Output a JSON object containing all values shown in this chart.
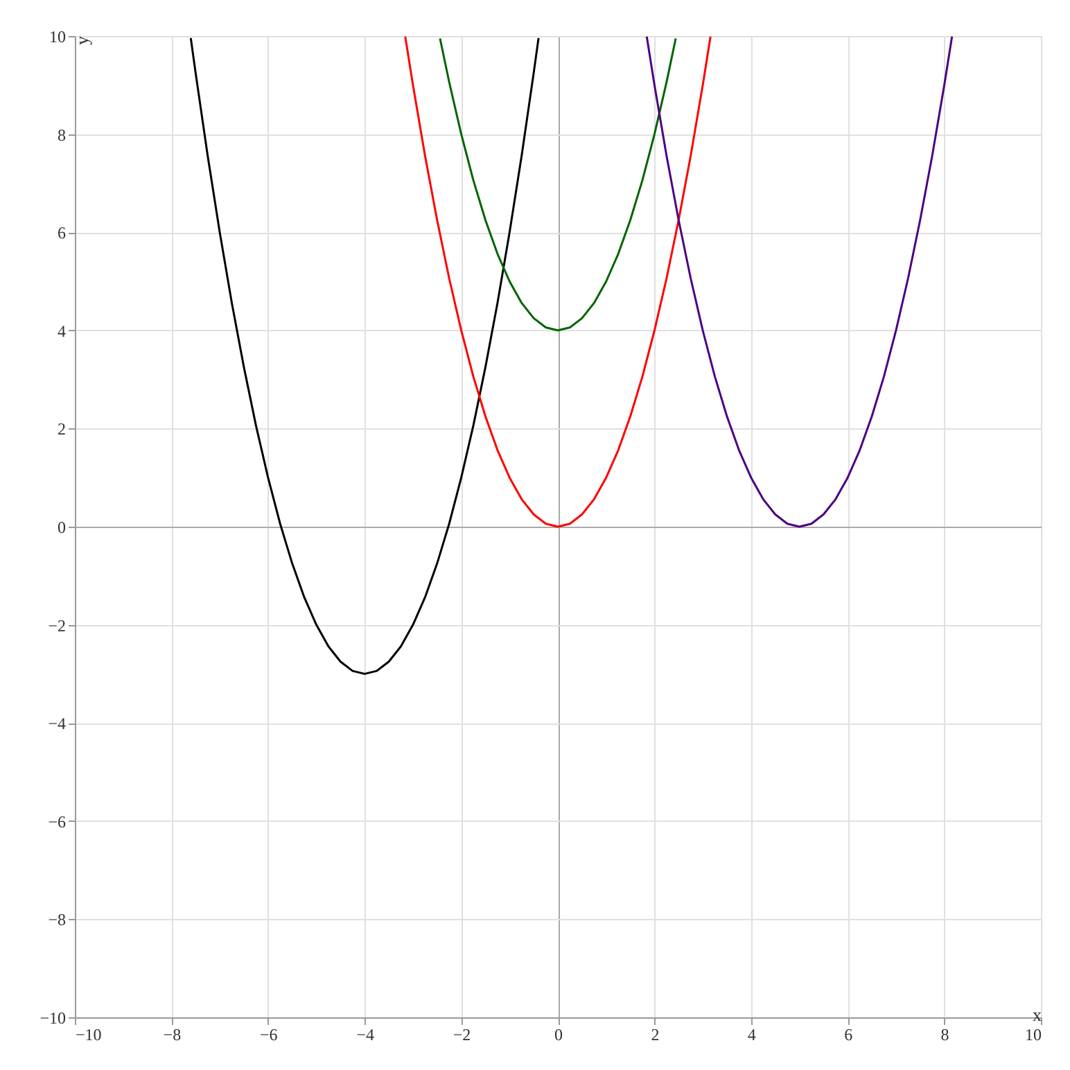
{
  "chart_data": {
    "type": "line",
    "xlabel": "x",
    "ylabel": "y",
    "xlim": [
      -10,
      10
    ],
    "ylim": [
      -10,
      10
    ],
    "xticks": [
      -10,
      -8,
      -6,
      -4,
      -2,
      0,
      2,
      4,
      6,
      8,
      10
    ],
    "yticks": [
      -10,
      -8,
      -6,
      -4,
      -2,
      0,
      2,
      4,
      6,
      8,
      10
    ],
    "grid": true,
    "marker": "none",
    "line_style": "solid",
    "series": [
      {
        "color": "#000000",
        "x": [
          -7.6,
          -7.5,
          -7.25,
          -7,
          -6.75,
          -6.5,
          -6.25,
          -6,
          -5.75,
          -5.5,
          -5.25,
          -5,
          -4.75,
          -4.5,
          -4.25,
          -4,
          -3.75,
          -3.5,
          -3.25,
          -3,
          -2.75,
          -2.5,
          -2.25,
          -2,
          -1.75,
          -1.5,
          -1.25,
          -1,
          -0.75,
          -0.5,
          -0.4
        ],
        "values": [
          9.96,
          9.25,
          7.56,
          6,
          4.56,
          3.25,
          2.06,
          1,
          0.06,
          -0.75,
          -1.44,
          -2,
          -2.44,
          -2.75,
          -2.94,
          -3,
          -2.94,
          -2.75,
          -2.44,
          -2,
          -1.44,
          -0.75,
          0.06,
          1,
          2.06,
          3.25,
          4.56,
          6,
          7.56,
          9.25,
          9.96
        ]
      },
      {
        "color": "#ff0000",
        "x": [
          -3.16,
          -3,
          -2.75,
          -2.5,
          -2.25,
          -2,
          -1.75,
          -1.5,
          -1.25,
          -1,
          -0.75,
          -0.5,
          -0.25,
          0,
          0.25,
          0.5,
          0.75,
          1,
          1.25,
          1.5,
          1.75,
          2,
          2.25,
          2.5,
          2.75,
          3,
          3.16
        ],
        "values": [
          9.99,
          9,
          7.56,
          6.25,
          5.06,
          4,
          3.06,
          2.25,
          1.56,
          1,
          0.56,
          0.25,
          0.06,
          0,
          0.06,
          0.25,
          0.56,
          1,
          1.56,
          2.25,
          3.06,
          4,
          5.06,
          6.25,
          7.56,
          9,
          9.99
        ]
      },
      {
        "color": "#006400",
        "x": [
          -2.44,
          -2.25,
          -2,
          -1.75,
          -1.5,
          -1.25,
          -1,
          -0.75,
          -0.5,
          -0.25,
          0,
          0.25,
          0.5,
          0.75,
          1,
          1.25,
          1.5,
          1.75,
          2,
          2.25,
          2.44
        ],
        "values": [
          9.95,
          9.06,
          8,
          7.06,
          6.25,
          5.56,
          5,
          4.56,
          4.25,
          4.06,
          4,
          4.06,
          4.25,
          4.56,
          5,
          5.56,
          6.25,
          7.06,
          8,
          9.06,
          9.95
        ]
      },
      {
        "color": "#4b0082",
        "x": [
          1.84,
          2,
          2.25,
          2.5,
          2.75,
          3,
          3.25,
          3.5,
          3.75,
          4,
          4.25,
          4.5,
          4.75,
          5,
          5.25,
          5.5,
          5.75,
          6,
          6.25,
          6.5,
          6.75,
          7,
          7.25,
          7.5,
          7.75,
          8,
          8.16
        ],
        "values": [
          9.99,
          9,
          7.56,
          6.25,
          5.06,
          4,
          3.06,
          2.25,
          1.56,
          1,
          0.56,
          0.25,
          0.06,
          0,
          0.06,
          0.25,
          0.56,
          1,
          1.56,
          2.25,
          3.06,
          4,
          5.06,
          6.25,
          7.56,
          9,
          9.99
        ]
      }
    ]
  }
}
